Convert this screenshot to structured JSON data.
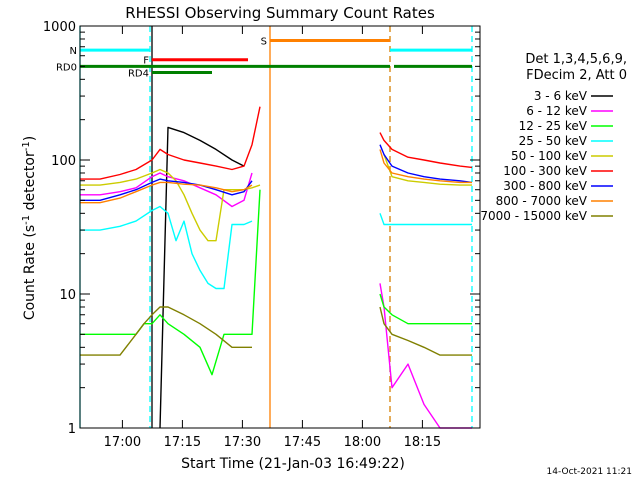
{
  "chart_data": {
    "type": "line",
    "title": "RHESSI Observing Summary Count Rates",
    "xlabel": "Start Time (21-Jan-03 16:49:22)",
    "ylabel_parts": [
      "Count Rate (s",
      "-1",
      " detector",
      "-1",
      ")"
    ],
    "x_unit": "minutes after 16:49:22",
    "xlim": [
      0,
      100
    ],
    "ylim": [
      1,
      1000
    ],
    "yscale": "log",
    "x_ticks": [
      {
        "x": 10.6,
        "label": "17:00"
      },
      {
        "x": 25.6,
        "label": "17:15"
      },
      {
        "x": 40.6,
        "label": "17:30"
      },
      {
        "x": 55.6,
        "label": "17:45"
      },
      {
        "x": 70.6,
        "label": "18:00"
      },
      {
        "x": 85.6,
        "label": "18:15"
      }
    ],
    "y_ticks": [
      {
        "y": 1,
        "label": "1"
      },
      {
        "y": 10,
        "label": "10"
      },
      {
        "y": 100,
        "label": "100"
      },
      {
        "y": 1000,
        "label": "1000"
      }
    ],
    "legend_position": "right",
    "legend_header": [
      "Det 1,3,4,5,6,9,",
      "FDecim 2, Att 0"
    ],
    "series": [
      {
        "name": "3 - 6 keV",
        "color": "#000000",
        "x": [
          20,
          22,
          26,
          30,
          34,
          38,
          41,
          43,
          45,
          57,
          63,
          69,
          74,
          75,
          76,
          78,
          82,
          86,
          90,
          95,
          98
        ],
        "y": [
          1,
          175,
          160,
          140,
          120,
          100,
          90,
          null,
          null,
          null,
          null,
          null,
          null,
          null,
          null,
          null,
          null,
          null,
          null,
          null,
          null
        ]
      },
      {
        "name": "6 - 12 keV",
        "color": "#ff00ff",
        "x": [
          0,
          5,
          10,
          14,
          18,
          20,
          22,
          26,
          30,
          34,
          38,
          41,
          43,
          45,
          57,
          63,
          69,
          74,
          75,
          76,
          78,
          82,
          86,
          90,
          95,
          98
        ],
        "y": [
          55,
          55,
          58,
          62,
          75,
          80,
          75,
          70,
          62,
          55,
          45,
          50,
          80,
          null,
          null,
          null,
          null,
          null,
          12,
          8,
          2,
          3,
          1.5,
          1,
          1,
          1
        ]
      },
      {
        "name": "12 - 25 keV",
        "color": "#00ff00",
        "x": [
          0,
          5,
          10,
          14,
          16,
          18,
          20,
          22,
          26,
          30,
          33,
          36,
          40,
          43,
          45,
          57,
          63,
          69,
          74,
          75,
          76,
          78,
          82,
          86,
          90,
          95,
          98
        ],
        "y": [
          5,
          5,
          5,
          5,
          6,
          6,
          7,
          6,
          5,
          4,
          2.5,
          5,
          5,
          5,
          60,
          null,
          null,
          null,
          null,
          10,
          8,
          7,
          6,
          6,
          6,
          6,
          6
        ]
      },
      {
        "name": "25 - 50 keV",
        "color": "#00ffff",
        "x": [
          0,
          5,
          10,
          14,
          18,
          20,
          22,
          24,
          26,
          28,
          30,
          32,
          34,
          36,
          38,
          41,
          43,
          45,
          57,
          63,
          69,
          74,
          75,
          76,
          78,
          82,
          86,
          90,
          95,
          98
        ],
        "y": [
          30,
          30,
          32,
          35,
          42,
          45,
          40,
          25,
          35,
          20,
          15,
          12,
          11,
          11,
          33,
          33,
          35,
          null,
          null,
          null,
          null,
          null,
          40,
          33,
          33,
          33,
          33,
          33,
          33,
          33
        ]
      },
      {
        "name": "50 - 100 keV",
        "color": "#cccc00",
        "x": [
          0,
          5,
          10,
          14,
          18,
          20,
          22,
          24,
          26,
          28,
          30,
          32,
          34,
          36,
          41,
          43,
          45,
          57,
          63,
          69,
          74,
          75,
          76,
          78,
          82,
          86,
          90,
          95,
          98
        ],
        "y": [
          65,
          65,
          68,
          72,
          80,
          85,
          80,
          70,
          55,
          40,
          30,
          25,
          25,
          60,
          60,
          62,
          65,
          null,
          null,
          null,
          null,
          null,
          110,
          75,
          70,
          68,
          66,
          65,
          65
        ]
      },
      {
        "name": "100 - 300 keV",
        "color": "#ff0000",
        "x": [
          0,
          5,
          10,
          14,
          18,
          20,
          22,
          26,
          30,
          34,
          38,
          41,
          43,
          45,
          57,
          63,
          69,
          74,
          75,
          76,
          78,
          82,
          86,
          90,
          95,
          98
        ],
        "y": [
          72,
          72,
          78,
          85,
          100,
          120,
          110,
          100,
          95,
          90,
          85,
          90,
          130,
          250,
          null,
          null,
          null,
          null,
          160,
          140,
          120,
          105,
          100,
          95,
          90,
          88
        ]
      },
      {
        "name": "300 - 800 keV",
        "color": "#0000ff",
        "x": [
          0,
          5,
          10,
          14,
          18,
          20,
          22,
          26,
          30,
          34,
          38,
          41,
          43,
          45,
          57,
          63,
          69,
          74,
          75,
          76,
          78,
          82,
          86,
          90,
          95,
          98
        ],
        "y": [
          50,
          50,
          55,
          60,
          68,
          72,
          70,
          68,
          65,
          60,
          55,
          58,
          70,
          null,
          null,
          null,
          null,
          null,
          130,
          110,
          90,
          80,
          75,
          72,
          70,
          68
        ]
      },
      {
        "name": "800 - 7000 keV",
        "color": "#ff8000",
        "x": [
          0,
          5,
          10,
          14,
          18,
          20,
          22,
          26,
          30,
          34,
          38,
          41,
          43,
          45,
          57,
          63,
          69,
          74,
          75,
          76,
          78,
          82,
          86,
          90,
          95,
          98
        ],
        "y": [
          48,
          48,
          52,
          58,
          65,
          68,
          68,
          66,
          65,
          62,
          58,
          60,
          65,
          null,
          null,
          null,
          null,
          null,
          120,
          95,
          80,
          75,
          72,
          70,
          68,
          68
        ]
      },
      {
        "name": "7000 - 15000 keV",
        "color": "#808000",
        "x": [
          0,
          5,
          10,
          14,
          16,
          18,
          20,
          22,
          26,
          30,
          34,
          38,
          41,
          43,
          45,
          57,
          63,
          69,
          74,
          75,
          76,
          78,
          82,
          86,
          90,
          95,
          98
        ],
        "y": [
          3.5,
          3.5,
          3.5,
          5,
          6,
          7,
          8,
          8,
          7,
          6,
          5,
          4,
          4,
          4,
          null,
          null,
          null,
          null,
          null,
          8,
          6,
          5,
          4.5,
          4,
          3.5,
          3.5,
          3.5
        ]
      }
    ],
    "flags": [
      {
        "label": "N",
        "color": "#00ffff",
        "y": 660,
        "segments": [
          [
            0,
            17.5
          ],
          [
            77.5,
            98
          ]
        ]
      },
      {
        "label": "S",
        "color": "#ff8000",
        "y": 780,
        "segments": [
          [
            47.5,
            77.5
          ]
        ]
      },
      {
        "label": "F",
        "color": "#ff0000",
        "y": 560,
        "segments": [
          [
            18,
            42
          ]
        ]
      },
      {
        "label": "RD0",
        "color": "#008000",
        "y": 500,
        "segments": [
          [
            0,
            77.5
          ],
          [
            78.5,
            98
          ]
        ]
      },
      {
        "label": "RD4",
        "color": "#008000",
        "y": 450,
        "segments": [
          [
            18,
            33
          ]
        ]
      }
    ],
    "vlines": [
      {
        "x": 0,
        "color": "#00ffff",
        "style": "solid"
      },
      {
        "x": 17.5,
        "color": "#00ffff",
        "style": "dashed"
      },
      {
        "x": 18,
        "color": "#000000",
        "style": "solid"
      },
      {
        "x": 47.5,
        "color": "#ff8000",
        "style": "solid"
      },
      {
        "x": 77.5,
        "color": "#00ffff",
        "style": "dashed"
      },
      {
        "x": 77.5,
        "color": "#ff8000",
        "style": "dashed"
      },
      {
        "x": 98,
        "color": "#00ffff",
        "style": "dashed"
      }
    ],
    "timestamp": "14-Oct-2021 11:21"
  }
}
